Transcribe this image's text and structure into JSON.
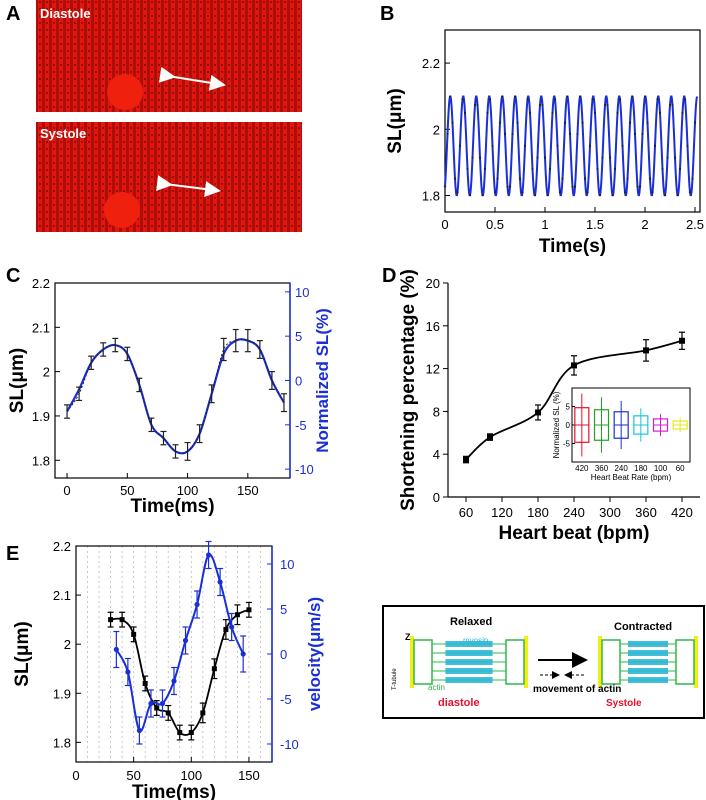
{
  "panel_labels": {
    "a": "A",
    "b": "B",
    "c": "C",
    "d": "D",
    "e": "E"
  },
  "micrographs": {
    "top_label": "Diastole",
    "bottom_label": "Systole"
  },
  "chart_data": [
    {
      "id": "B",
      "type": "line",
      "xlabel": "Time(s)",
      "ylabel": "SL(μm)",
      "xlim": [
        0,
        2.55
      ],
      "ylim": [
        1.75,
        2.3
      ],
      "xticks": [
        0,
        0.5,
        1,
        1.5,
        2,
        2.5
      ],
      "xtick_labels": [
        "0",
        "0.5",
        "1",
        "1.5",
        "2",
        "2.5"
      ],
      "yticks": [
        1.8,
        2,
        2.2
      ],
      "ytick_labels": [
        "1.8",
        "2",
        "2.2"
      ],
      "series": [
        {
          "name": "SL",
          "color": "#1b2fd6",
          "oscillation": {
            "period_s": 0.13,
            "min": 1.8,
            "max": 2.1,
            "duration_s": 2.52
          }
        }
      ]
    },
    {
      "id": "C",
      "type": "line",
      "xlabel": "Time(ms)",
      "ylabel": "SL(μm)",
      "y2label": "Normalized SL(%)",
      "xlim": [
        -10,
        185
      ],
      "ylim": [
        1.76,
        2.2
      ],
      "y2lim": [
        -11,
        11
      ],
      "xticks": [
        0,
        50,
        100,
        150
      ],
      "xtick_labels": [
        "0",
        "50",
        "100",
        "150"
      ],
      "yticks": [
        1.8,
        1.9,
        2,
        2.1,
        2.2
      ],
      "ytick_labels": [
        "1.8",
        "1.9",
        "2",
        "2.1",
        "2.2"
      ],
      "y2ticks": [
        -10,
        -5,
        0,
        5,
        10
      ],
      "y2tick_labels": [
        "-10",
        "-5",
        "0",
        "5",
        "10"
      ],
      "series": [
        {
          "name": "SL",
          "color": "#000000",
          "x": [
            0,
            10,
            20,
            30,
            40,
            50,
            60,
            70,
            80,
            90,
            100,
            110,
            120,
            130,
            140,
            150,
            160,
            170,
            180
          ],
          "y": [
            1.91,
            1.95,
            2.02,
            2.05,
            2.06,
            2.04,
            1.97,
            1.88,
            1.85,
            1.82,
            1.82,
            1.86,
            1.95,
            2.05,
            2.07,
            2.07,
            2.05,
            1.98,
            1.93
          ],
          "err": [
            0.015,
            0.015,
            0.015,
            0.015,
            0.015,
            0.015,
            0.015,
            0.015,
            0.015,
            0.015,
            0.02,
            0.02,
            0.02,
            0.025,
            0.025,
            0.025,
            0.02,
            0.02,
            0.02
          ]
        },
        {
          "name": "Normalized SL fit",
          "color": "#1b2fd6",
          "x": [
            0,
            10,
            20,
            30,
            40,
            50,
            60,
            70,
            80,
            90,
            100,
            110,
            120,
            130,
            140,
            150,
            160,
            170,
            180
          ],
          "y": [
            1.91,
            1.96,
            2.02,
            2.05,
            2.06,
            2.04,
            1.97,
            1.88,
            1.85,
            1.82,
            1.82,
            1.86,
            1.95,
            2.04,
            2.07,
            2.07,
            2.05,
            1.98,
            1.93
          ]
        }
      ]
    },
    {
      "id": "D",
      "type": "line",
      "xlabel": "Heart beat (bpm)",
      "ylabel": "Shortening percentage (%)",
      "ylim": [
        0,
        20
      ],
      "yticks": [
        0,
        4,
        8,
        12,
        16,
        20
      ],
      "ytick_labels": [
        "0",
        "4",
        "8",
        "12",
        "16",
        "20"
      ],
      "categories": [
        "60",
        "120",
        "180",
        "240",
        "300",
        "360",
        "420"
      ],
      "series": [
        {
          "name": "Shortening",
          "color": "#000000",
          "x": [
            60,
            100,
            180,
            240,
            360,
            420
          ],
          "y": [
            3.5,
            5.6,
            7.9,
            12.3,
            13.7,
            14.6
          ],
          "err": [
            0.3,
            0.3,
            0.7,
            0.9,
            1.0,
            0.8
          ]
        }
      ],
      "inset": {
        "ylabel": "Normalized SL (%)",
        "xlabel": "Heart Beat Rate (bpm)",
        "categories": [
          "420",
          "360",
          "240",
          "180",
          "100",
          "60"
        ],
        "yticks": [
          -5,
          0,
          5
        ],
        "ytick_labels": [
          "-5",
          "0",
          "5"
        ],
        "box_colors": [
          "#e8102c",
          "#1fa31f",
          "#1b2fd6",
          "#19c3d8",
          "#d81ad8",
          "#e8e81a"
        ],
        "spread": [
          8.5,
          7.5,
          6.5,
          4.5,
          3.0,
          2.0
        ]
      }
    },
    {
      "id": "E",
      "type": "line",
      "xlabel": "Time(ms)",
      "ylabel": "SL(μm)",
      "y2label": "velocity(μm/s)",
      "xlim": [
        0,
        170
      ],
      "ylim": [
        1.76,
        2.2
      ],
      "y2lim": [
        -12,
        12
      ],
      "xticks": [
        0,
        50,
        100,
        150
      ],
      "xtick_labels": [
        "0",
        "50",
        "100",
        "150"
      ],
      "yticks": [
        1.8,
        1.9,
        2,
        2.1,
        2.2
      ],
      "ytick_labels": [
        "1.8",
        "1.9",
        "2",
        "2.1",
        "2.2"
      ],
      "y2ticks": [
        -10,
        -5,
        0,
        5,
        10
      ],
      "y2tick_labels": [
        "-10",
        "-5",
        "0",
        "5",
        "10"
      ],
      "series": [
        {
          "name": "SL",
          "color": "#000000",
          "x": [
            30,
            40,
            50,
            60,
            70,
            80,
            90,
            100,
            110,
            120,
            130,
            140,
            150
          ],
          "y": [
            2.05,
            2.05,
            2.02,
            1.92,
            1.87,
            1.86,
            1.82,
            1.82,
            1.86,
            1.95,
            2.03,
            2.06,
            2.07
          ],
          "err": [
            0.015,
            0.015,
            0.015,
            0.015,
            0.015,
            0.015,
            0.015,
            0.015,
            0.02,
            0.02,
            0.02,
            0.02,
            0.015
          ]
        },
        {
          "name": "velocity",
          "color": "#1b2fd6",
          "x": [
            35,
            45,
            55,
            65,
            75,
            85,
            95,
            105,
            115,
            125,
            135,
            145
          ],
          "y": [
            0.5,
            -2.0,
            -8.5,
            -5.5,
            -5.5,
            -3.0,
            1.5,
            5.5,
            11.0,
            8.0,
            3.0,
            0.0
          ],
          "err": [
            2.0,
            1.5,
            1.5,
            1.5,
            1.5,
            1.5,
            1.5,
            1.5,
            1.5,
            1.5,
            1.5,
            2.0
          ]
        }
      ]
    }
  ],
  "schematic": {
    "relaxed": "Relaxed",
    "contracted": "Contracted",
    "diastole": "diastole",
    "systole": "Systole",
    "myosin": "myosin",
    "actin": "actin",
    "z": "Z",
    "ttubule": "T-tubule",
    "movement": "movement of actin"
  },
  "colors": {
    "blue": "#1b2fd6",
    "black": "#000000",
    "red": "#e8102c",
    "yellow": "#f2ee16",
    "green": "#2fb84a",
    "cyan": "#2bb7d6"
  }
}
